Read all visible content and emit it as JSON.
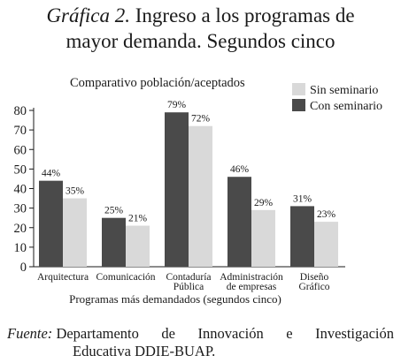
{
  "header": {
    "title_prefix": "Gráfica 2.",
    "title_line1": "Ingreso a los programas de",
    "title_line2": "mayor demanda. Segundos cinco"
  },
  "chart_data": {
    "type": "bar",
    "title": "Comparativo población/aceptados",
    "xlabel": "Programas más demandados (segundos cinco)",
    "ylabel": "",
    "ylim": [
      0,
      80
    ],
    "yticks": [
      0,
      10,
      20,
      30,
      40,
      50,
      60,
      70,
      80
    ],
    "categories": [
      [
        "Arquitectura"
      ],
      [
        "Comunicación"
      ],
      [
        "Contaduría",
        "Pública"
      ],
      [
        "Administración",
        "de empresas"
      ],
      [
        "Diseño",
        "Gráfico"
      ]
    ],
    "series": [
      {
        "name": "Con seminario",
        "color": "#4a4a4a",
        "values": [
          44,
          25,
          79,
          46,
          31
        ],
        "labels": [
          "44%",
          "25%",
          "79%",
          "46%",
          "31%"
        ]
      },
      {
        "name": "Sin seminario",
        "color": "#d9d9d9",
        "values": [
          35,
          21,
          72,
          29,
          23
        ],
        "labels": [
          "35%",
          "21%",
          "72%",
          "29%",
          "23%"
        ]
      }
    ],
    "legend_order": [
      "Sin seminario",
      "Con seminario"
    ],
    "legend_position": "top-right",
    "grid": false
  },
  "footer": {
    "label": "Fuente:",
    "w1": "Departamento",
    "w2": "de",
    "w3": "Innovación",
    "w4": "e",
    "w5": "Investigación",
    "line2": "Educativa DDIE-BUAP."
  }
}
